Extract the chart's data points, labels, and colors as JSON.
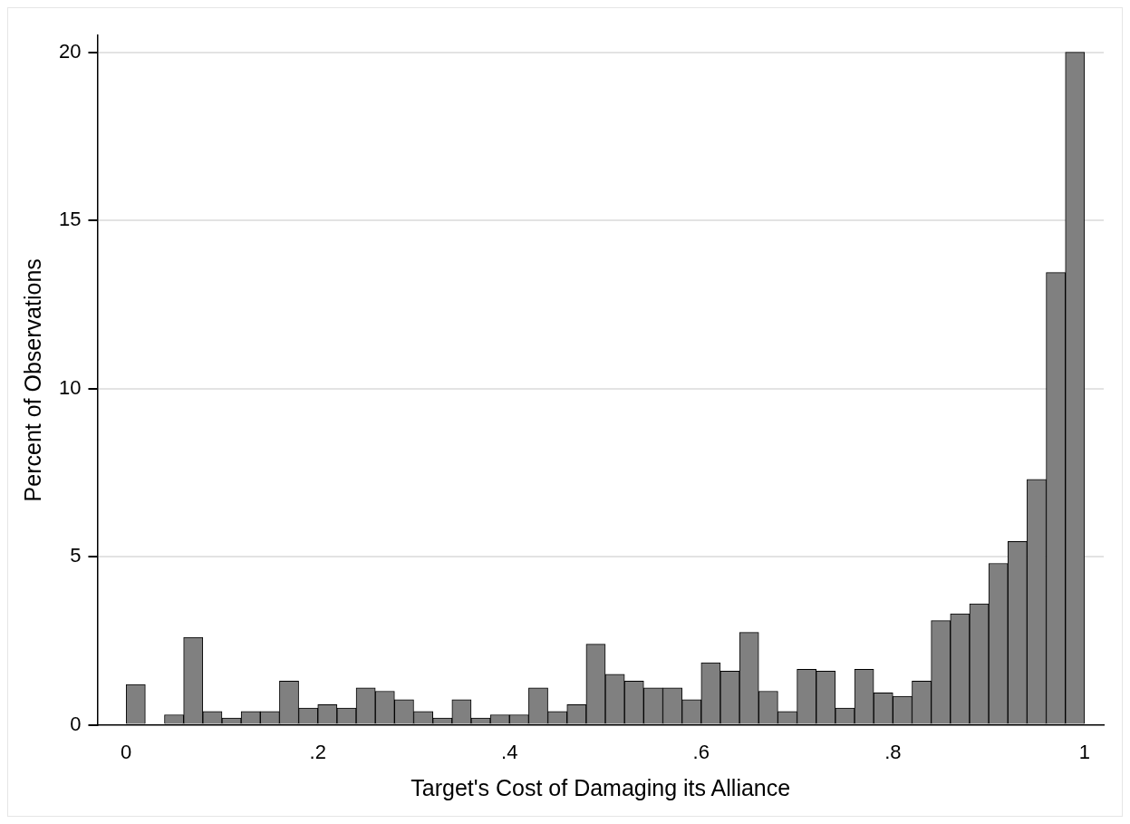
{
  "chart_data": {
    "type": "histogram",
    "xlabel": "Target's Cost of Damaging its Alliance",
    "ylabel": "Percent of Observations",
    "bins": [
      0,
      0.02,
      0.04,
      0.06,
      0.08,
      0.1,
      0.12,
      0.14,
      0.16,
      0.18,
      0.2,
      0.22,
      0.24,
      0.26,
      0.28,
      0.3,
      0.32,
      0.34,
      0.36,
      0.38,
      0.4,
      0.42,
      0.44,
      0.46,
      0.48,
      0.5,
      0.52,
      0.54,
      0.56,
      0.58,
      0.6,
      0.62,
      0.64,
      0.66,
      0.68,
      0.7,
      0.72,
      0.74,
      0.76,
      0.78,
      0.8,
      0.82,
      0.84,
      0.86,
      0.88,
      0.9,
      0.92,
      0.94,
      0.96,
      0.98,
      1
    ],
    "values": [
      1.2,
      0,
      0.3,
      2.6,
      0.4,
      0.2,
      0.4,
      0.4,
      1.3,
      0.5,
      0.6,
      0.5,
      1.1,
      1.0,
      0.75,
      0.4,
      0.2,
      0.75,
      0.2,
      0.3,
      0.3,
      1.1,
      0.4,
      0.6,
      2.4,
      1.5,
      1.3,
      1.1,
      1.1,
      0.75,
      1.85,
      1.6,
      2.75,
      1.0,
      0.4,
      1.65,
      1.6,
      0.5,
      1.65,
      0.95,
      0.85,
      1.3,
      3.1,
      3.3,
      3.6,
      4.8,
      5.45,
      7.3,
      13.45,
      20
    ],
    "color": "#808080",
    "xlim": [
      -0.03,
      1.02
    ],
    "ylim": [
      0,
      20.5
    ],
    "xticks": [
      0,
      {
        "value": 0.2,
        "label": ".2"
      },
      {
        "value": 0.4,
        "label": ".4"
      },
      {
        "value": 0.6,
        "label": ".6"
      },
      {
        "value": 0.8,
        "label": ".8"
      },
      1
    ],
    "yticks": [
      0,
      5,
      10,
      15,
      20
    ],
    "grid": "y",
    "legend": false
  }
}
